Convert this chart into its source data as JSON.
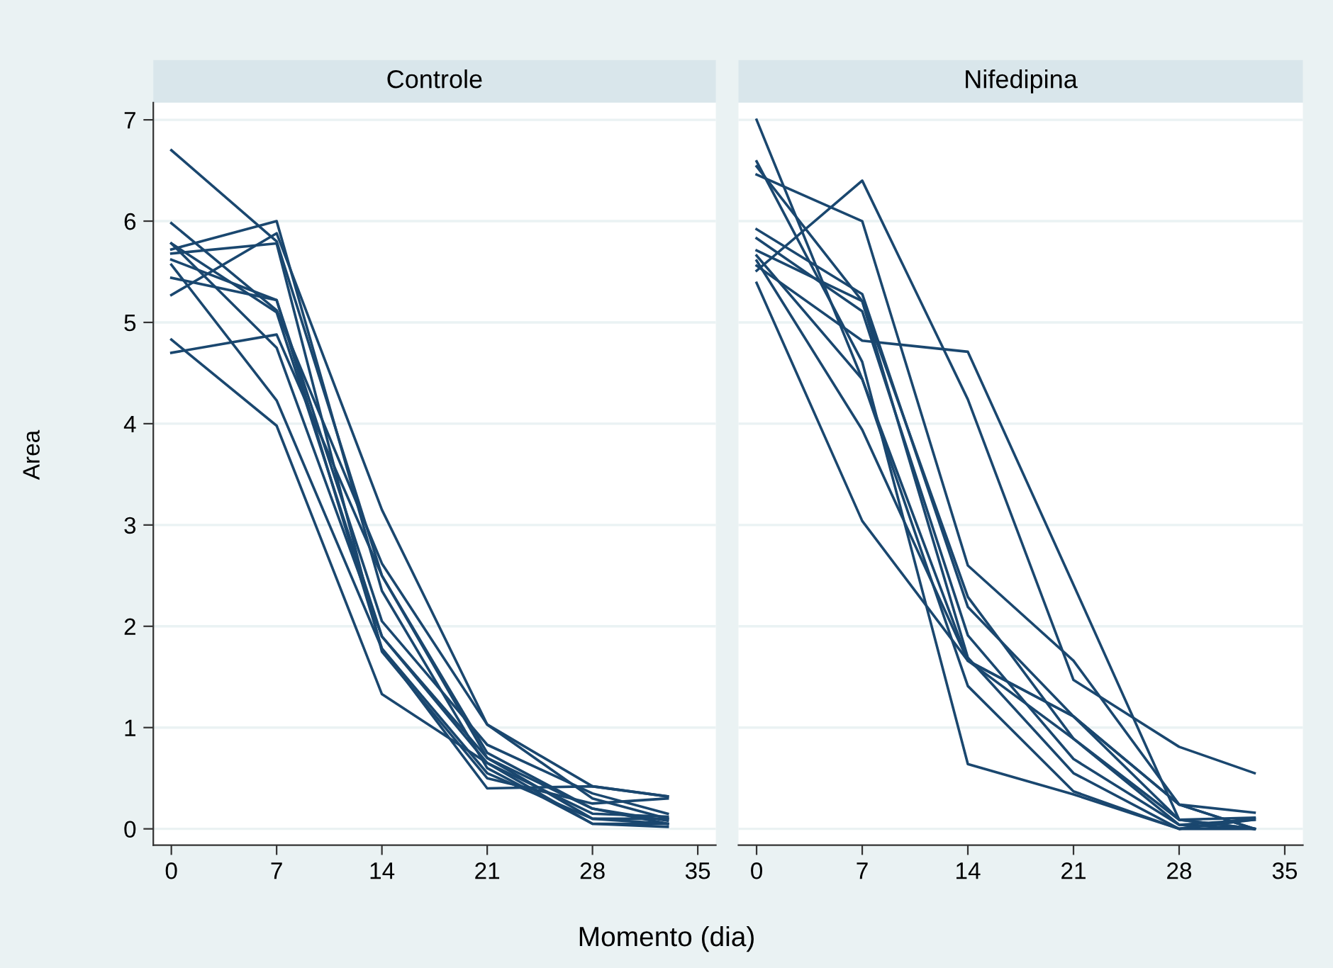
{
  "chart_data": [
    {
      "type": "line",
      "title": "Controle",
      "xlabel": "Momento (dia)",
      "ylabel": "Area",
      "x": [
        0,
        7,
        14,
        21,
        28,
        33
      ],
      "xlim": [
        -1.2,
        36.2
      ],
      "xticks": [
        0,
        7,
        14,
        21,
        28,
        35
      ],
      "ylim": [
        -0.16,
        7.17
      ],
      "yticks": [
        0,
        1,
        2,
        3,
        4,
        5,
        6,
        7
      ],
      "grid": "y",
      "marker": "none",
      "line_style": "solid",
      "series": [
        {
          "color": "#1a476f",
          "values": [
            6.7,
            5.8,
            2.5,
            0.75,
            0.2,
            0.05
          ]
        },
        {
          "color": "#1a476f",
          "values": [
            5.98,
            5.12,
            2.62,
            1.03,
            0.42,
            0.32
          ]
        },
        {
          "color": "#1a476f",
          "values": [
            5.78,
            5.1,
            1.9,
            0.7,
            0.1,
            0.1
          ]
        },
        {
          "color": "#1a476f",
          "values": [
            5.72,
            6.0,
            2.35,
            0.6,
            0.05,
            0.02
          ]
        },
        {
          "color": "#1a476f",
          "values": [
            5.68,
            5.78,
            1.75,
            0.5,
            0.25,
            0.3
          ]
        },
        {
          "color": "#1a476f",
          "values": [
            5.62,
            5.22,
            2.05,
            0.83,
            0.35,
            0.15
          ]
        },
        {
          "color": "#1a476f",
          "values": [
            5.57,
            4.23,
            1.78,
            0.4,
            0.42,
            0.32
          ]
        },
        {
          "color": "#1a476f",
          "values": [
            5.44,
            5.22,
            1.78,
            0.55,
            0.1,
            0.05
          ]
        },
        {
          "color": "#1a476f",
          "values": [
            5.27,
            5.88,
            3.15,
            1.03,
            0.3,
            0.1
          ]
        },
        {
          "color": "#1a476f",
          "values": [
            4.83,
            3.98,
            1.33,
            0.65,
            0.15,
            0.12
          ]
        },
        {
          "color": "#1a476f",
          "values": [
            4.7,
            4.88,
            2.5,
            0.7,
            0.2,
            0.08
          ]
        },
        {
          "color": "#1a476f",
          "values": [
            5.78,
            4.75,
            1.9,
            0.65,
            0.05,
            0.05
          ]
        }
      ]
    },
    {
      "type": "line",
      "title": "Nifedipina",
      "x": [
        0,
        7,
        14,
        21,
        28,
        33
      ],
      "xlim": [
        -1.2,
        36.2
      ],
      "xticks": [
        0,
        7,
        14,
        21,
        28,
        35
      ],
      "ylim": [
        -0.16,
        7.17
      ],
      "yticks": [
        0,
        1,
        2,
        3,
        4,
        5,
        6,
        7
      ],
      "tick_labels": "x",
      "grid": "y",
      "marker": "none",
      "line_style": "solid",
      "series": [
        {
          "color": "#1a476f",
          "values": [
            7.0,
            4.44,
            1.66,
            1.11,
            0.24,
            0.0
          ]
        },
        {
          "color": "#1a476f",
          "values": [
            6.46,
            6.0,
            2.6,
            1.66,
            0.24,
            0.16
          ]
        },
        {
          "color": "#1a476f",
          "values": [
            5.51,
            6.4,
            4.24,
            1.47,
            0.81,
            0.55
          ]
        },
        {
          "color": "#1a476f",
          "values": [
            5.56,
            4.82,
            4.71,
            2.41,
            0.09,
            0.0
          ]
        },
        {
          "color": "#1a476f",
          "values": [
            6.54,
            5.21,
            2.29,
            0.89,
            0.04,
            0.09
          ]
        },
        {
          "color": "#1a476f",
          "values": [
            6.59,
            4.61,
            0.64,
            0.34,
            0.0,
            0.0
          ]
        },
        {
          "color": "#1a476f",
          "values": [
            5.92,
            5.28,
            2.19,
            1.11,
            0.09,
            0.11
          ]
        },
        {
          "color": "#1a476f",
          "values": [
            5.83,
            5.11,
            1.91,
            0.69,
            0.04,
            0.0
          ]
        },
        {
          "color": "#1a476f",
          "values": [
            5.71,
            5.21,
            1.69,
            0.55,
            0.0,
            0.09
          ]
        },
        {
          "color": "#1a476f",
          "values": [
            5.66,
            4.44,
            1.41,
            0.37,
            0.0,
            0.11
          ]
        },
        {
          "color": "#1a476f",
          "values": [
            5.61,
            3.94,
            1.66,
            1.11,
            0.24,
            0.0
          ]
        },
        {
          "color": "#1a476f",
          "values": [
            5.39,
            3.04,
            1.66,
            0.89,
            0.09,
            0.0
          ]
        }
      ]
    }
  ]
}
